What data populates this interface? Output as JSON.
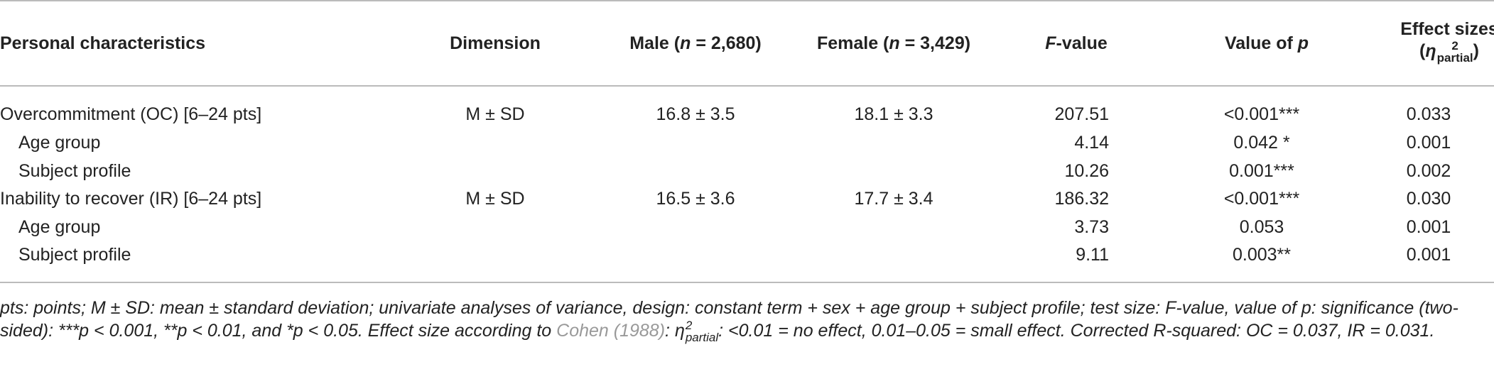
{
  "table": {
    "header": [
      [
        "Personal characteristics"
      ],
      [
        "Dimension"
      ],
      [
        "Male (",
        "n",
        " = 2,680)"
      ],
      [
        "Female (",
        "n",
        " = 3,429)"
      ],
      [
        "F",
        "-value"
      ],
      [
        "Value of ",
        "p"
      ],
      [
        "Effect sizes",
        "(",
        "η",
        "2",
        "partial",
        ")"
      ]
    ],
    "rows": [
      [
        "Overcommitment (OC) [6–24 pts]",
        "M ± SD",
        "16.8 ± 3.5",
        "18.1 ± 3.3",
        "207.51",
        "<0.001***",
        "0.033"
      ],
      [
        "Age group",
        null,
        null,
        null,
        "4.14",
        "0.042 *",
        "0.001"
      ],
      [
        "Subject profile",
        null,
        null,
        null,
        "10.26",
        "0.001***",
        "0.002"
      ],
      [
        "Inability to recover (IR) [6–24 pts]",
        "M ± SD",
        "16.5 ± 3.6",
        "17.7 ± 3.4",
        "186.32",
        "<0.001***",
        "0.030"
      ],
      [
        "Age group",
        null,
        null,
        null,
        "3.73",
        "0.053",
        "0.001"
      ],
      [
        "Subject profile",
        null,
        null,
        null,
        "9.11",
        "0.003**",
        "0.001"
      ]
    ]
  },
  "footnote": [
    "pts: points; M ± SD: mean ± standard deviation; univariate analyses of variance, design: constant term + sex + age group + subject profile; test size: F-value, value of p: significance (two-sided): ***p < 0.001, **p < 0.01, and *p < 0.05. Effect size according to ",
    "Cohen (1988)",
    ": ",
    "η",
    "2",
    "partial",
    ": <0.01 = no effect, 0.01–0.05 = small effect. Corrected R-squared: OC = 0.037, IR = 0.031."
  ]
}
